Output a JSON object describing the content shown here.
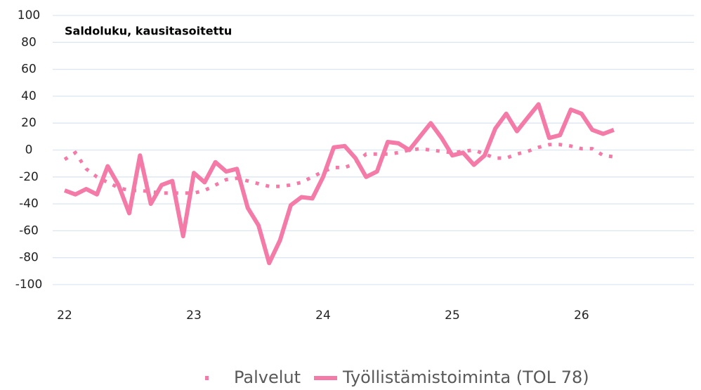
{
  "chart_data": {
    "type": "line",
    "title": "Saldoluku, kausitasoitettu",
    "x": [
      22,
      22.083,
      22.167,
      22.25,
      22.333,
      22.417,
      22.5,
      22.583,
      22.667,
      22.75,
      22.833,
      22.917,
      23,
      23.083,
      23.167,
      23.25,
      23.333,
      23.417,
      23.5,
      23.583,
      23.667,
      23.75,
      23.833,
      23.917,
      24,
      24.083,
      24.167,
      24.25,
      24.333,
      24.417,
      24.5,
      24.583,
      24.667,
      24.75,
      24.833,
      24.917,
      25,
      25.083,
      25.167,
      25.25,
      25.333,
      25.417,
      25.5,
      25.583,
      25.667,
      25.75,
      25.833,
      25.917,
      26,
      26.083,
      26.167,
      26.25
    ],
    "series": [
      {
        "name": "Palvelut",
        "color": "#f47aa8",
        "style": "dotted",
        "values": [
          -7,
          -2,
          -14,
          -20,
          -24,
          -28,
          -30,
          -30,
          -31,
          -32,
          -32,
          -32,
          -32,
          -30,
          -26,
          -22,
          -21,
          -23,
          -25,
          -27,
          -27,
          -26,
          -24,
          -20,
          -16,
          -13,
          -13,
          -10,
          -3,
          -3,
          -3,
          -2,
          0,
          1,
          0,
          -1,
          -2,
          -1,
          0,
          -3,
          -6,
          -6,
          -3,
          -1,
          2,
          4,
          4,
          3,
          1,
          1,
          -4,
          -5
        ]
      },
      {
        "name": "Työllistämistoiminta (TOL 78)",
        "color": "#f47aa8",
        "style": "solid",
        "values": [
          -30,
          -33,
          -29,
          -33,
          -12,
          -26,
          -47,
          -4,
          -40,
          -26,
          -23,
          -64,
          -17,
          -24,
          -9,
          -16,
          -14,
          -43,
          -56,
          -84,
          -67,
          -41,
          -35,
          -36,
          -20,
          2,
          3,
          -6,
          -20,
          -16,
          6,
          5,
          0,
          10,
          20,
          9,
          -4,
          -2,
          -11,
          -4,
          16,
          27,
          14,
          24,
          34,
          9,
          11,
          30,
          27,
          15,
          12,
          15
        ]
      }
    ],
    "xlim": [
      22,
      26.87
    ],
    "xticks": [
      22,
      23,
      24,
      25,
      26
    ],
    "ylim": [
      -100,
      100
    ],
    "yticks": [
      -100,
      -80,
      -60,
      -40,
      -20,
      0,
      20,
      40,
      60,
      80,
      100
    ],
    "grid": true,
    "legend": "bottom"
  }
}
